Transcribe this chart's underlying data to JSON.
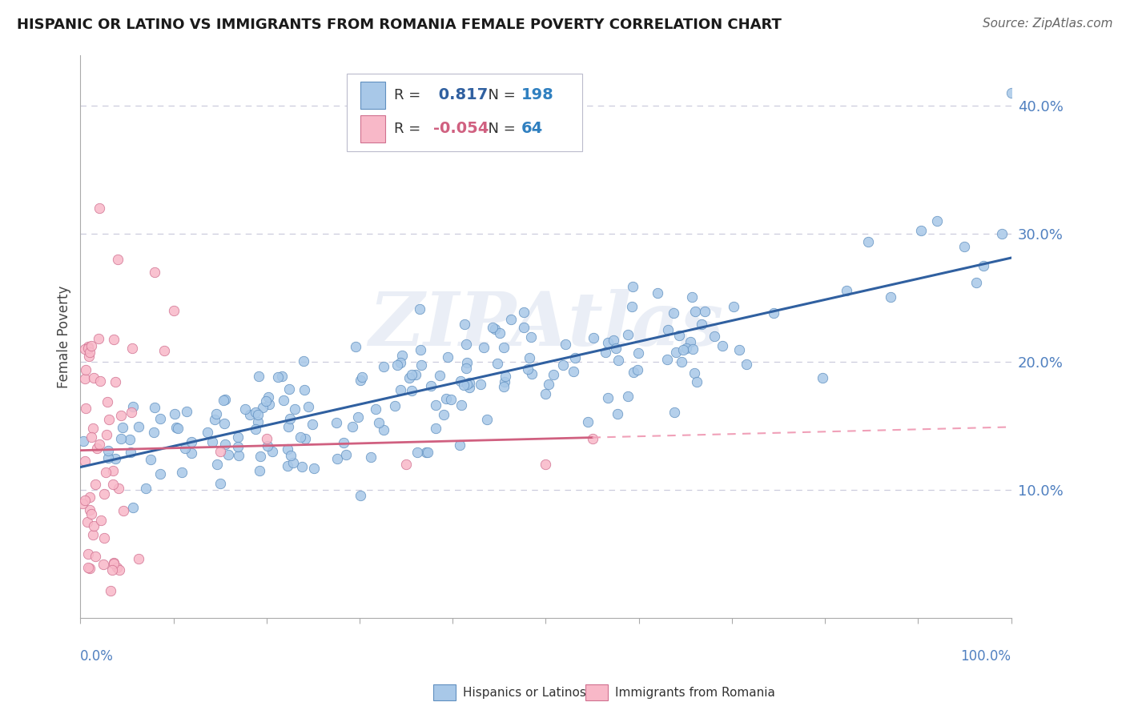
{
  "title": "HISPANIC OR LATINO VS IMMIGRANTS FROM ROMANIA FEMALE POVERTY CORRELATION CHART",
  "source": "Source: ZipAtlas.com",
  "ylabel": "Female Poverty",
  "r_blue": 0.817,
  "n_blue": 198,
  "r_pink": -0.054,
  "n_pink": 64,
  "y_ticks": [
    0.1,
    0.2,
    0.3,
    0.4
  ],
  "y_tick_labels": [
    "10.0%",
    "20.0%",
    "30.0%",
    "40.0%"
  ],
  "xlim": [
    0.0,
    1.0
  ],
  "ylim": [
    0.0,
    0.44
  ],
  "blue_scatter_color": "#a8c8e8",
  "blue_scatter_edge": "#6090c0",
  "blue_line_color": "#3060a0",
  "pink_scatter_color": "#f8b8c8",
  "pink_scatter_edge": "#d07090",
  "pink_line_solid_color": "#d06080",
  "pink_line_dash_color": "#f0a0b8",
  "background": "#ffffff",
  "grid_color": "#ccccdd",
  "watermark": "ZIPAtlas",
  "tick_label_color": "#5080c0",
  "legend_r_color": "#3060a0",
  "legend_n_color": "#3080c0",
  "legend_pink_r_color": "#d06080"
}
